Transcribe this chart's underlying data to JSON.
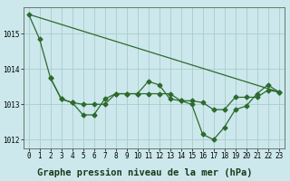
{
  "background_color": "#cce8ec",
  "grid_color": "#aacccc",
  "line_color": "#2d6a2d",
  "title": "Graphe pression niveau de la mer (hPa)",
  "xlim": [
    -0.5,
    23.5
  ],
  "ylim": [
    1011.75,
    1015.75
  ],
  "xticks": [
    0,
    1,
    2,
    3,
    4,
    5,
    6,
    7,
    8,
    9,
    10,
    11,
    12,
    13,
    14,
    15,
    16,
    17,
    18,
    19,
    20,
    21,
    22,
    23
  ],
  "yticks": [
    1012,
    1013,
    1014,
    1015
  ],
  "series1_x": [
    0,
    1,
    2,
    3,
    4,
    5,
    6,
    7,
    8,
    9,
    10,
    11,
    12,
    13,
    14,
    15,
    16,
    17,
    18,
    19,
    20,
    21,
    22,
    23
  ],
  "series1_y": [
    1015.55,
    1014.85,
    1013.75,
    1013.15,
    1013.05,
    1012.7,
    1012.7,
    1013.15,
    1013.3,
    1013.3,
    1013.3,
    1013.65,
    1013.55,
    1013.15,
    1013.1,
    1013.0,
    1012.15,
    1012.0,
    1012.35,
    1012.85,
    1012.95,
    1013.3,
    1013.55,
    1013.35
  ],
  "series2_x": [
    2,
    3,
    4,
    5,
    6,
    7,
    8,
    9,
    10,
    11,
    12,
    13,
    14,
    15,
    16,
    17,
    18,
    19,
    20,
    21,
    22,
    23
  ],
  "series2_y": [
    1013.75,
    1013.15,
    1013.05,
    1013.0,
    1013.0,
    1013.0,
    1013.3,
    1013.3,
    1013.3,
    1013.3,
    1013.3,
    1013.3,
    1013.1,
    1013.1,
    1013.05,
    1012.85,
    1012.85,
    1013.2,
    1013.2,
    1013.2,
    1013.4,
    1013.35
  ],
  "series3_x": [
    0,
    23
  ],
  "series3_y": [
    1015.55,
    1013.35
  ],
  "marker_size": 2.5,
  "line_width": 0.9,
  "title_fontsize": 7.5,
  "tick_fontsize": 5.5
}
